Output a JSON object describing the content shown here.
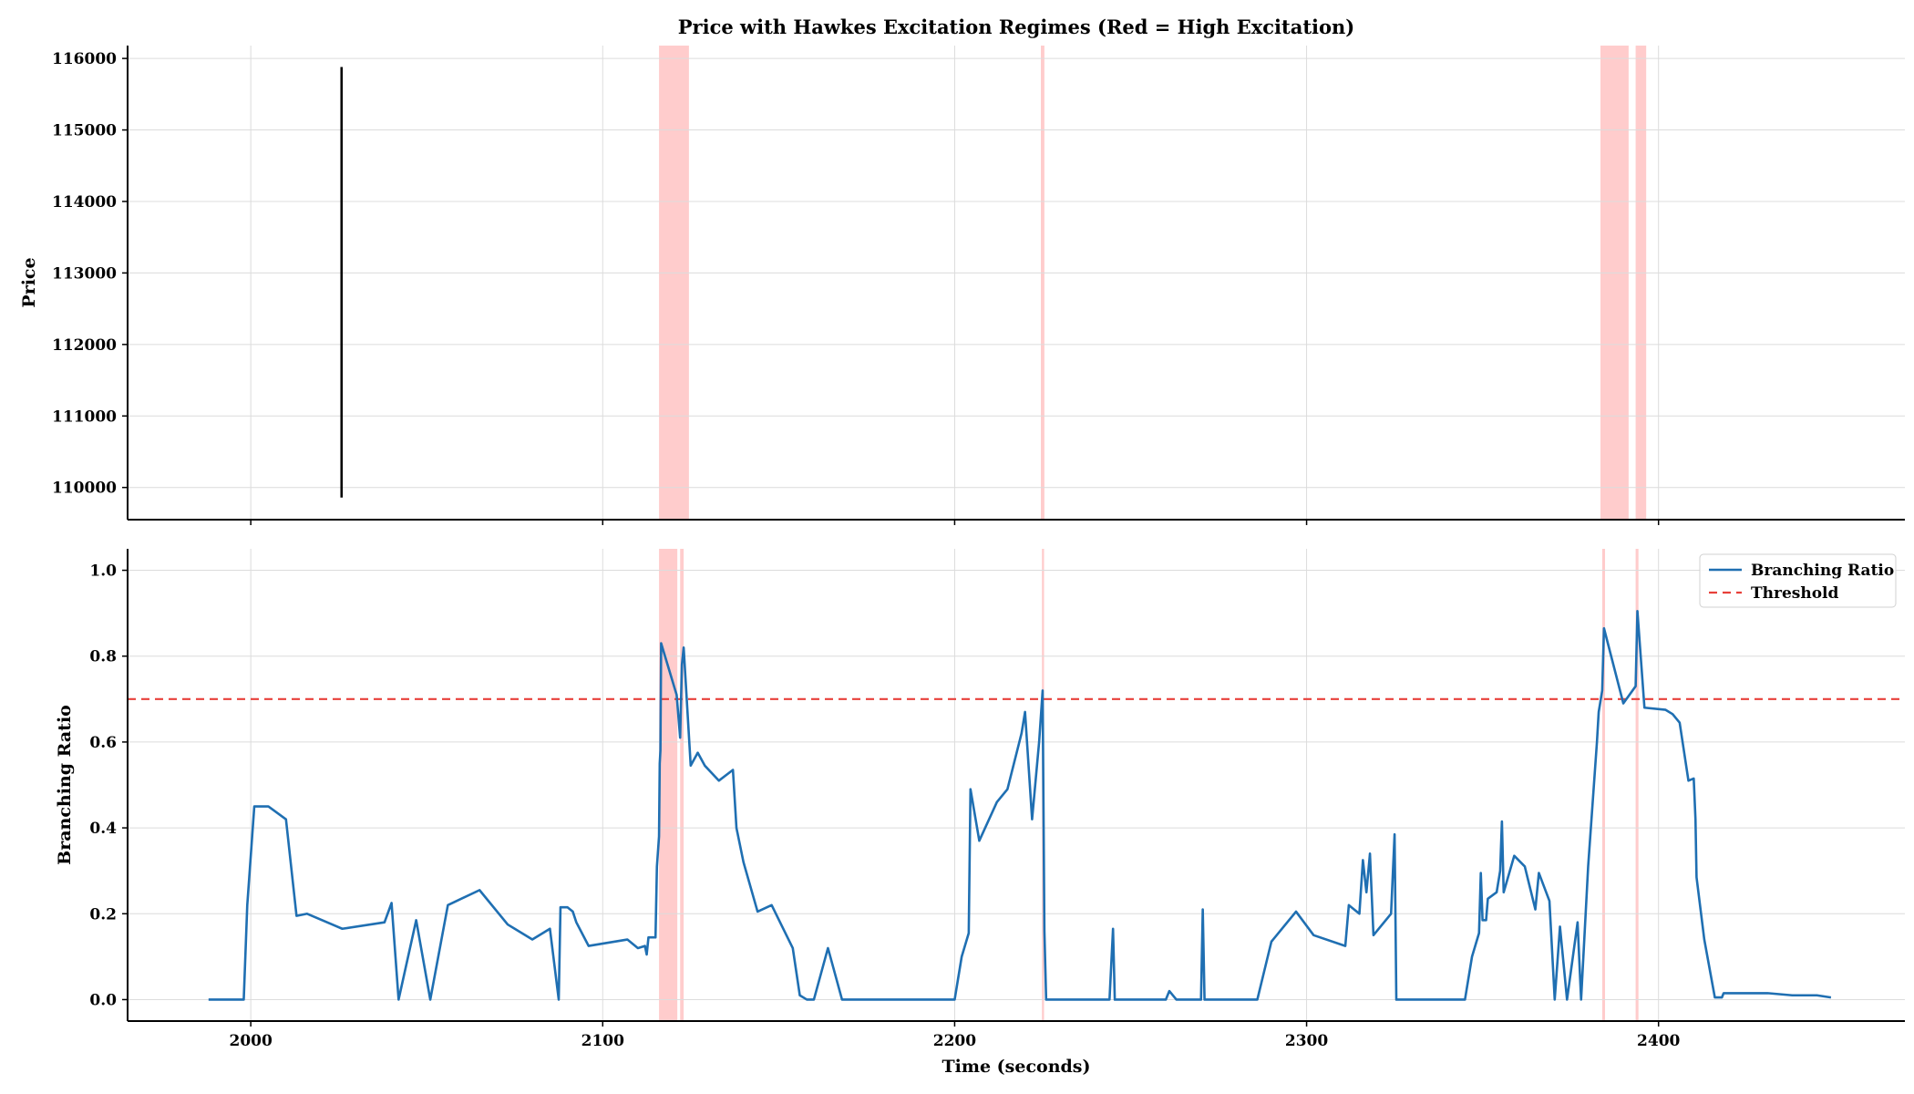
{
  "chart_data": [
    {
      "type": "line",
      "title": "Price with Hawkes Excitation Regimes (Red = High Excitation)",
      "xlabel": "",
      "ylabel": "Price",
      "xlim": [
        1965,
        2470
      ],
      "ylim": [
        109550,
        116180
      ],
      "xticks": [
        2000,
        2100,
        2200,
        2300,
        2400
      ],
      "yticks": [
        110000,
        111000,
        112000,
        113000,
        114000,
        115000,
        116000
      ],
      "grid": true,
      "series": [
        {
          "color": "#000000",
          "points": [
            [
              2025.8,
              115880
            ],
            [
              2025.8,
              109860
            ]
          ]
        }
      ],
      "shaded_regions": {
        "color": "#ff9a9a",
        "ranges": [
          [
            2116,
            2124.5
          ],
          [
            2224.5,
            2225.5
          ],
          [
            2383.5,
            2391.5
          ],
          [
            2393.5,
            2396.5
          ]
        ]
      }
    },
    {
      "type": "line",
      "title": "",
      "xlabel": "Time (seconds)",
      "ylabel": "Branching Ratio",
      "xlim": [
        1965,
        2470
      ],
      "ylim": [
        -0.05,
        1.05
      ],
      "xticks": [
        2000,
        2100,
        2200,
        2300,
        2400
      ],
      "yticks": [
        0.0,
        0.2,
        0.4,
        0.6,
        0.8,
        1.0
      ],
      "grid": true,
      "legend_position": "top-right",
      "threshold": {
        "name": "Threshold",
        "value": 0.7,
        "color": "#e8403a"
      },
      "shaded_regions": {
        "color": "#ff9a9a",
        "ranges": [
          [
            2116,
            2121.2
          ],
          [
            2122,
            2123
          ],
          [
            2224.8,
            2225.4
          ],
          [
            2384,
            2384.8
          ],
          [
            2393.5,
            2394.3
          ]
        ]
      },
      "series": [
        {
          "name": "Branching Ratio",
          "color": "#1f6fb2",
          "points": [
            [
              1988,
              0
            ],
            [
              1998,
              0
            ],
            [
              1999,
              0.22
            ],
            [
              2001,
              0.45
            ],
            [
              2005,
              0.45
            ],
            [
              2010,
              0.42
            ],
            [
              2013,
              0.195
            ],
            [
              2016,
              0.2
            ],
            [
              2026,
              0.165
            ],
            [
              2038,
              0.18
            ],
            [
              2040,
              0.225
            ],
            [
              2042,
              0
            ],
            [
              2047,
              0.185
            ],
            [
              2051,
              0
            ],
            [
              2056,
              0.22
            ],
            [
              2065,
              0.255
            ],
            [
              2073,
              0.175
            ],
            [
              2080,
              0.14
            ],
            [
              2085,
              0.165
            ],
            [
              2087.5,
              0
            ],
            [
              2088,
              0.215
            ],
            [
              2090,
              0.215
            ],
            [
              2091.5,
              0.205
            ],
            [
              2092.5,
              0.18
            ],
            [
              2096,
              0.125
            ],
            [
              2107,
              0.14
            ],
            [
              2110,
              0.12
            ],
            [
              2112,
              0.125
            ],
            [
              2112.5,
              0.105
            ],
            [
              2113,
              0.145
            ],
            [
              2115,
              0.145
            ],
            [
              2115.4,
              0.31
            ],
            [
              2116,
              0.38
            ],
            [
              2116.2,
              0.55
            ],
            [
              2116.4,
              0.58
            ],
            [
              2116.6,
              0.83
            ],
            [
              2121,
              0.71
            ],
            [
              2122,
              0.61
            ],
            [
              2122.5,
              0.78
            ],
            [
              2123,
              0.82
            ],
            [
              2125,
              0.545
            ],
            [
              2127,
              0.575
            ],
            [
              2129,
              0.545
            ],
            [
              2133,
              0.51
            ],
            [
              2137,
              0.535
            ],
            [
              2138,
              0.4
            ],
            [
              2140,
              0.32
            ],
            [
              2144,
              0.205
            ],
            [
              2148,
              0.22
            ],
            [
              2154,
              0.12
            ],
            [
              2156,
              0.01
            ],
            [
              2158,
              0.0
            ],
            [
              2160,
              0.0
            ],
            [
              2164,
              0.12
            ],
            [
              2168,
              0.0
            ],
            [
              2200,
              0.0
            ],
            [
              2202,
              0.1
            ],
            [
              2204,
              0.155
            ],
            [
              2204.5,
              0.49
            ],
            [
              2207,
              0.37
            ],
            [
              2212,
              0.46
            ],
            [
              2215,
              0.49
            ],
            [
              2219,
              0.62
            ],
            [
              2220,
              0.67
            ],
            [
              2222,
              0.42
            ],
            [
              2224,
              0.6
            ],
            [
              2225,
              0.72
            ],
            [
              2225.5,
              0.16
            ],
            [
              2226,
              0.0
            ],
            [
              2244,
              0.0
            ],
            [
              2245,
              0.165
            ],
            [
              2245.5,
              0.0
            ],
            [
              2260,
              0.0
            ],
            [
              2261,
              0.02
            ],
            [
              2263,
              0.0
            ],
            [
              2270,
              0.0
            ],
            [
              2270.5,
              0.21
            ],
            [
              2271,
              0.0
            ],
            [
              2286,
              0.0
            ],
            [
              2290,
              0.135
            ],
            [
              2297,
              0.205
            ],
            [
              2302,
              0.15
            ],
            [
              2311,
              0.125
            ],
            [
              2312,
              0.22
            ],
            [
              2315,
              0.2
            ],
            [
              2316,
              0.325
            ],
            [
              2317,
              0.25
            ],
            [
              2318,
              0.34
            ],
            [
              2319,
              0.15
            ],
            [
              2324,
              0.2
            ],
            [
              2325,
              0.385
            ],
            [
              2325.5,
              0.0
            ],
            [
              2345,
              0.0
            ],
            [
              2347,
              0.1
            ],
            [
              2349,
              0.155
            ],
            [
              2349.5,
              0.295
            ],
            [
              2350,
              0.185
            ],
            [
              2351,
              0.185
            ],
            [
              2351.5,
              0.235
            ],
            [
              2354,
              0.25
            ],
            [
              2355,
              0.3
            ],
            [
              2355.5,
              0.415
            ],
            [
              2356,
              0.25
            ],
            [
              2359,
              0.335
            ],
            [
              2362,
              0.31
            ],
            [
              2365,
              0.21
            ],
            [
              2366,
              0.295
            ],
            [
              2369,
              0.23
            ],
            [
              2370.5,
              0.0
            ],
            [
              2372,
              0.17
            ],
            [
              2374,
              0.0
            ],
            [
              2377,
              0.18
            ],
            [
              2378,
              0.0
            ],
            [
              2380,
              0.31
            ],
            [
              2382.5,
              0.6
            ],
            [
              2383,
              0.67
            ],
            [
              2384,
              0.72
            ],
            [
              2384.5,
              0.865
            ],
            [
              2390,
              0.69
            ],
            [
              2393.5,
              0.73
            ],
            [
              2394,
              0.905
            ],
            [
              2396,
              0.68
            ],
            [
              2402,
              0.675
            ],
            [
              2404,
              0.665
            ],
            [
              2406,
              0.645
            ],
            [
              2408.5,
              0.51
            ],
            [
              2410,
              0.515
            ],
            [
              2410.5,
              0.42
            ],
            [
              2410.8,
              0.285
            ],
            [
              2413,
              0.14
            ],
            [
              2416,
              0.005
            ],
            [
              2418,
              0.005
            ],
            [
              2418.5,
              0.015
            ],
            [
              2424,
              0.015
            ],
            [
              2431,
              0.015
            ],
            [
              2438,
              0.01
            ],
            [
              2445,
              0.01
            ],
            [
              2449,
              0.005
            ]
          ]
        }
      ]
    }
  ]
}
